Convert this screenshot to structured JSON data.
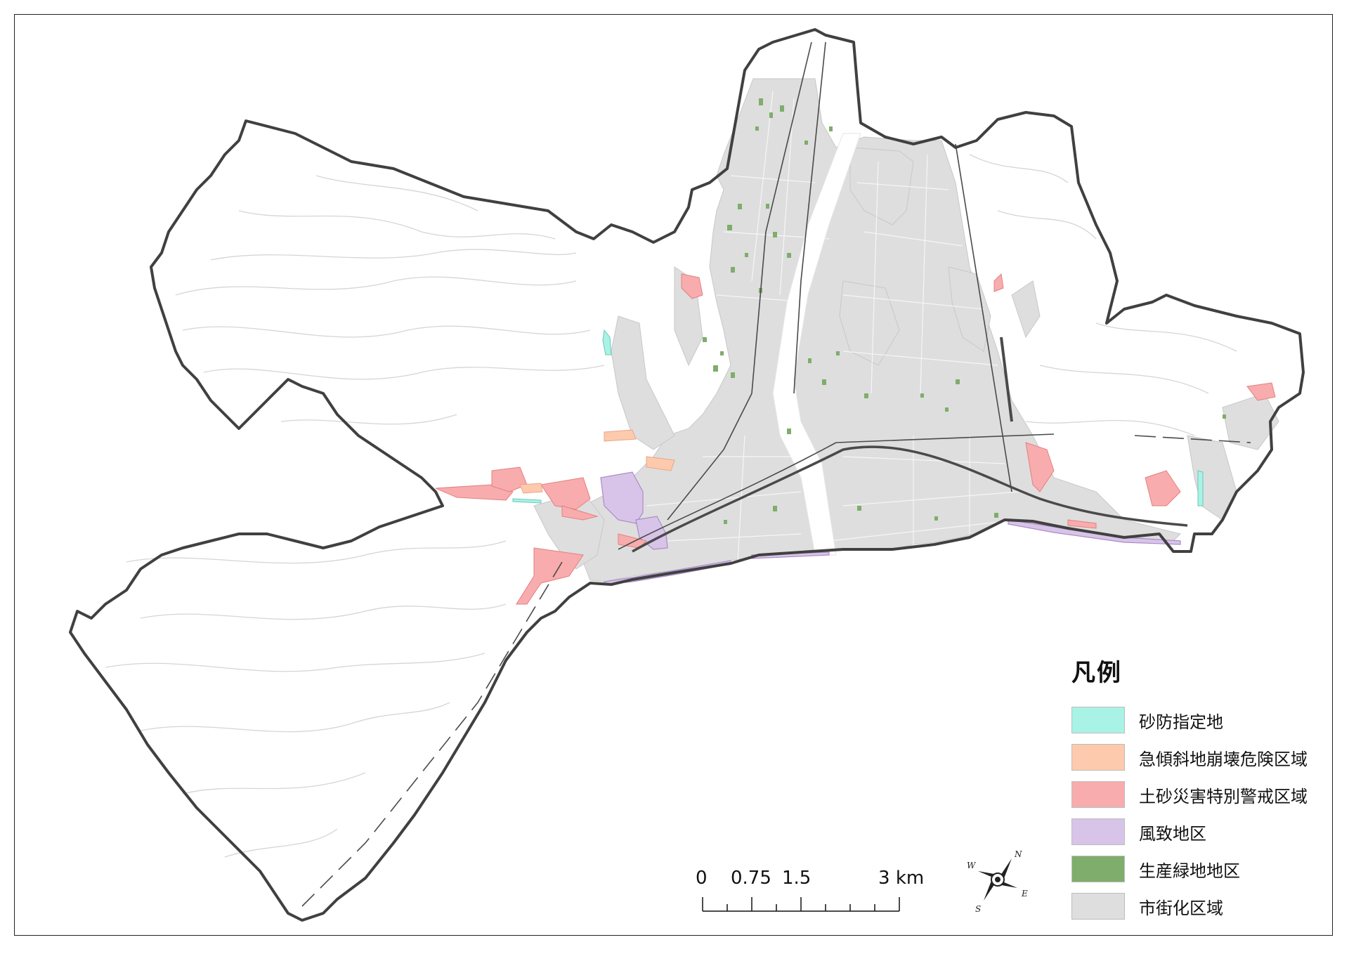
{
  "legend": {
    "title": "凡例",
    "items": [
      {
        "label": "砂防指定地",
        "color": "#a8f3e6"
      },
      {
        "label": "急傾斜地崩壊危険区域",
        "color": "#fdcaad"
      },
      {
        "label": "土砂災害特別警戒区域",
        "color": "#f9acad"
      },
      {
        "label": "風致地区",
        "color": "#d8c4e8"
      },
      {
        "label": "生産緑地地区",
        "color": "#7fad6b"
      },
      {
        "label": "市街化区域",
        "color": "#dedede"
      }
    ]
  },
  "scalebar": {
    "labels": [
      "0",
      "0.75",
      "1.5",
      "3"
    ],
    "values": [
      0,
      0.75,
      1.5,
      3
    ],
    "unit": "km"
  },
  "compass": {
    "n": "N",
    "e": "E",
    "s": "S",
    "w": "W"
  }
}
